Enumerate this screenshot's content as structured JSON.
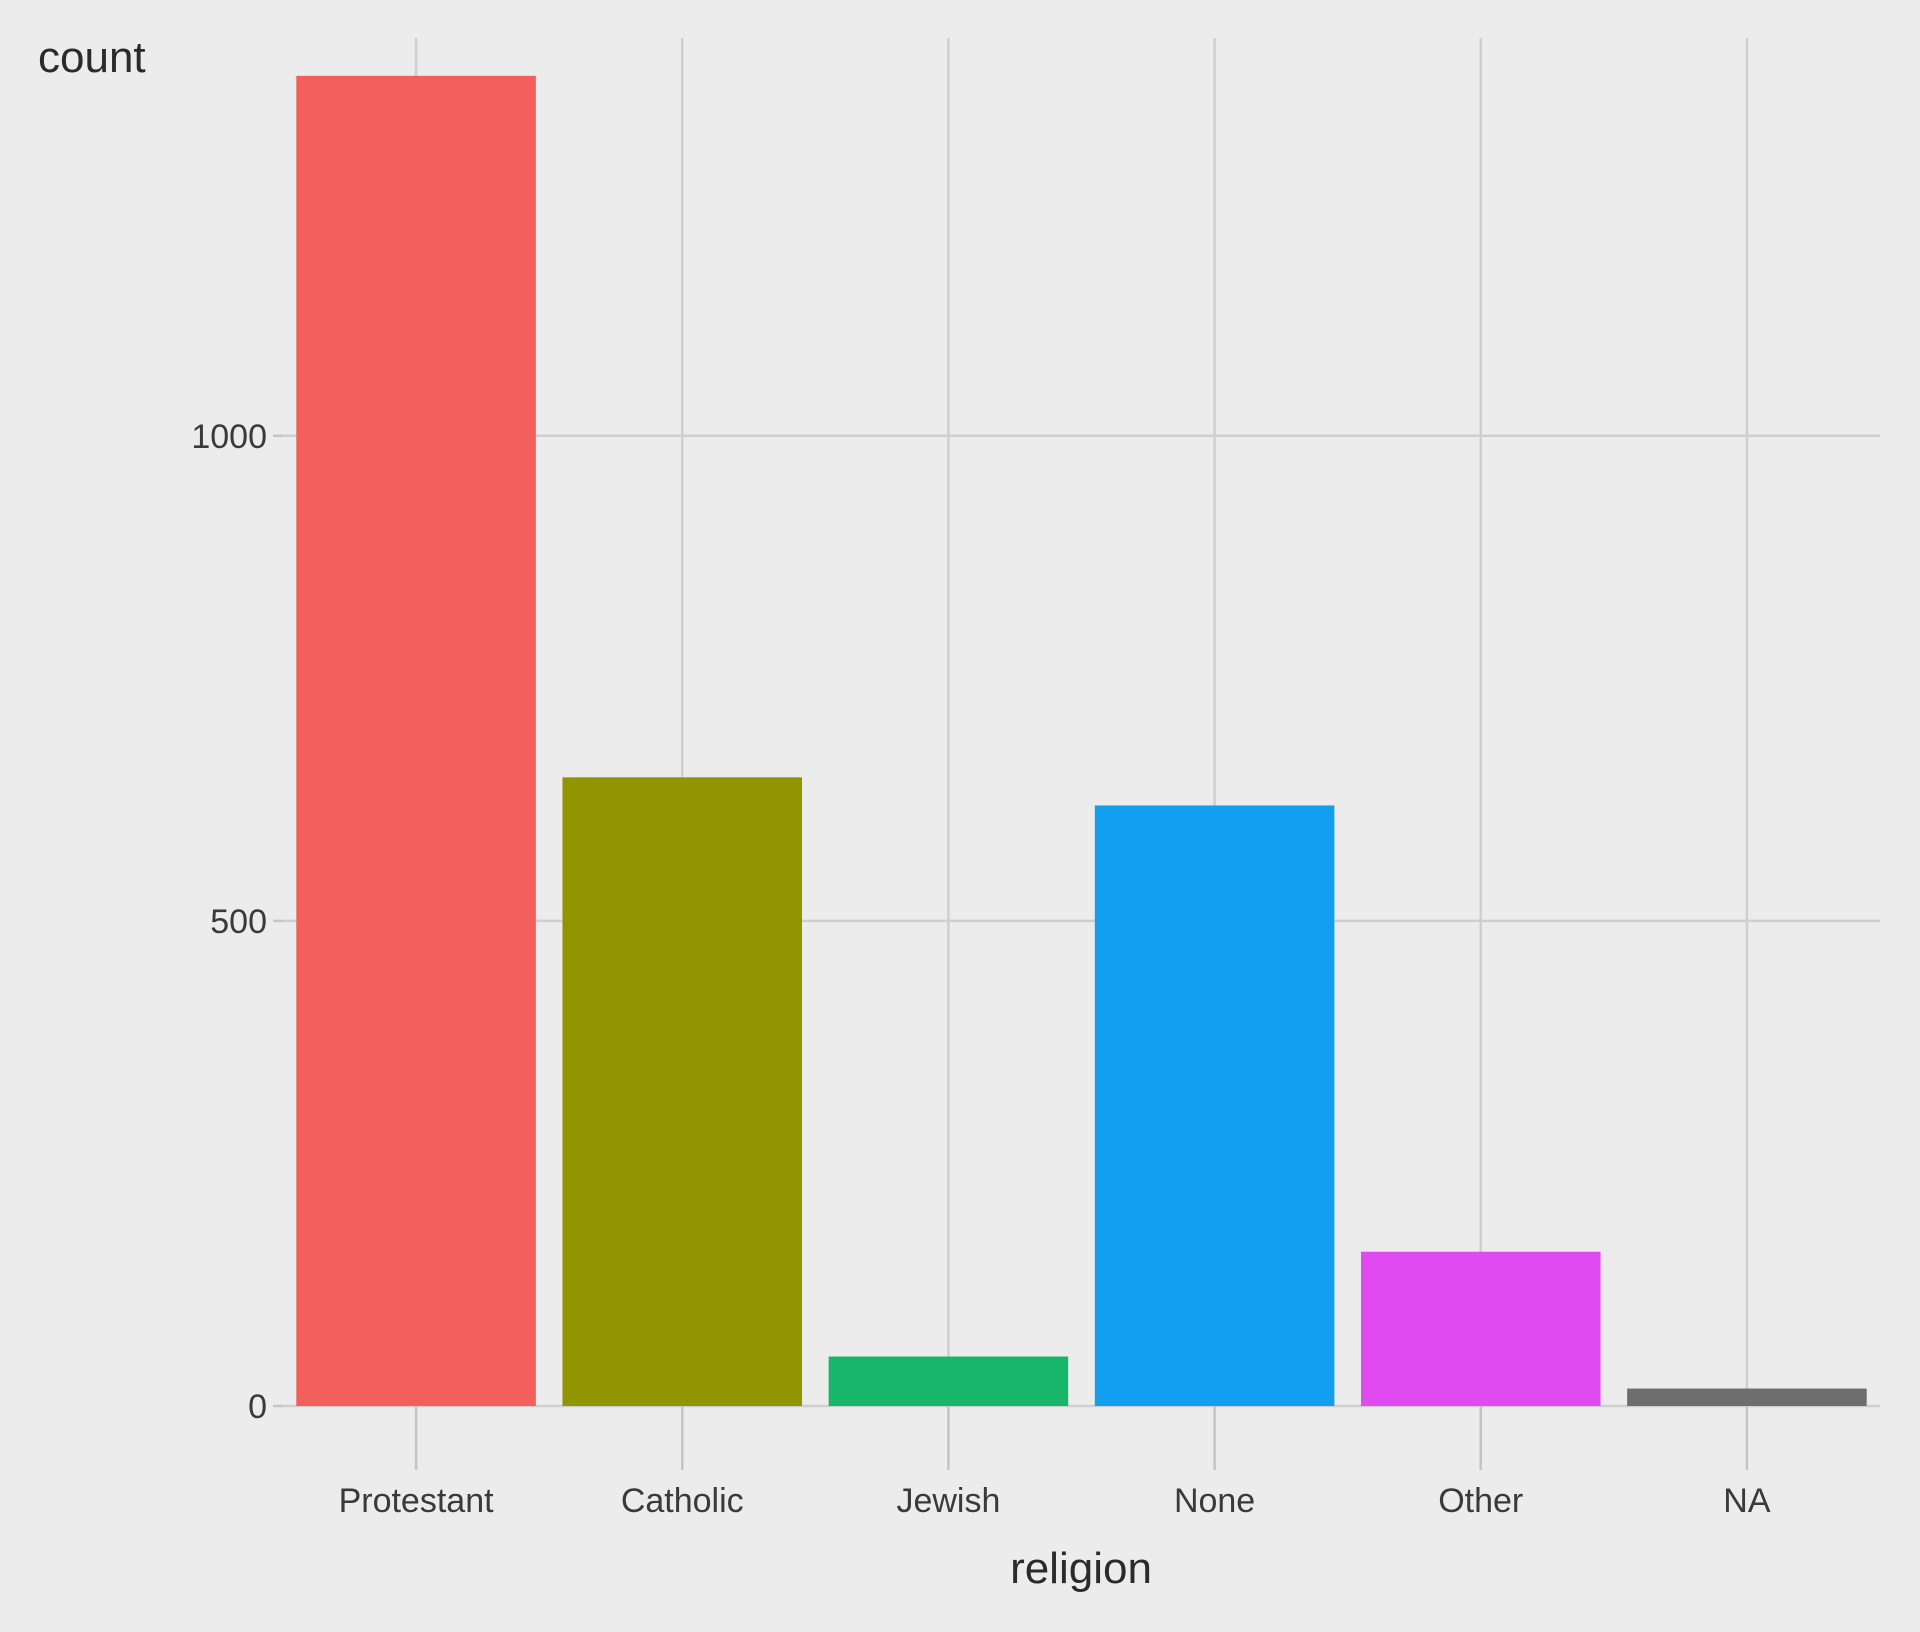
{
  "chart_data": {
    "type": "bar",
    "categories": [
      "Protestant",
      "Catholic",
      "Jewish",
      "None",
      "Other",
      "NA"
    ],
    "values": [
      1371,
      648,
      51,
      619,
      159,
      18
    ],
    "colors": [
      "#F35F5B",
      "#919600",
      "#17B66B",
      "#139FF0",
      "#DF4AF1",
      "#6E6E6E"
    ],
    "xlabel": "religion",
    "ylabel": "count",
    "ylim": [
      0,
      1410
    ],
    "yticks": [
      0,
      500,
      1000
    ],
    "ytick_labels": [
      "0",
      "500",
      "1000"
    ],
    "grid": true,
    "background": "#ECECEC"
  }
}
